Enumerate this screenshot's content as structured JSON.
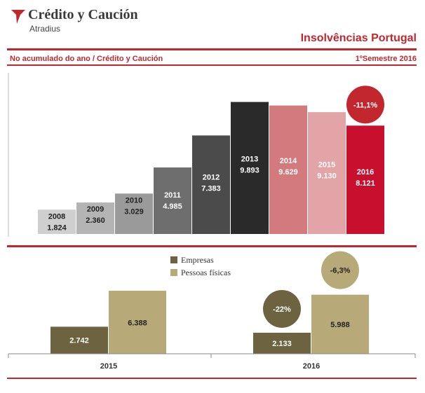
{
  "header": {
    "brand_name": "Crédito y Caución",
    "brand_sub": "Atradius",
    "title": "Insolvências Portugal",
    "subtitle": "No acumulado do ano / Crédito y Caución",
    "period": "1ºSemestre 2016"
  },
  "colors": {
    "accent": "#c1272d",
    "empresas": "#6e6340",
    "pessoas": "#b8aa78"
  },
  "chart_data": [
    {
      "type": "bar",
      "categories": [
        "2008",
        "2009",
        "2010",
        "2011",
        "2012",
        "2013",
        "2014",
        "2015",
        "2016"
      ],
      "values": [
        1824,
        2360,
        3029,
        4985,
        7383,
        9893,
        9629,
        9130,
        8121
      ],
      "value_labels": [
        "1.824",
        "2.360",
        "3.029",
        "4.985",
        "7.383",
        "9.893",
        "9.629",
        "9.130",
        "8.121"
      ],
      "colors": [
        "#cfcfcf",
        "#b4b4b4",
        "#9a9a9a",
        "#6e6e6e",
        "#4b4b4b",
        "#2a2a2a",
        "#d27a7c",
        "#e2a4a6",
        "#c8102e"
      ],
      "annotation": "-11,1%",
      "ylim": [
        0,
        10500
      ]
    },
    {
      "type": "bar",
      "categories": [
        "2015",
        "2016"
      ],
      "series": [
        {
          "name": "Empresas",
          "values": [
            2742,
            2133
          ],
          "value_labels": [
            "2.742",
            "2.133"
          ]
        },
        {
          "name": "Pessoas físicas",
          "values": [
            6388,
            5988
          ],
          "value_labels": [
            "6.388",
            "5.988"
          ]
        }
      ],
      "annotations": [
        "-22%",
        "-6,3%"
      ],
      "legend": "top-center",
      "ylim": [
        0,
        7100
      ]
    }
  ]
}
